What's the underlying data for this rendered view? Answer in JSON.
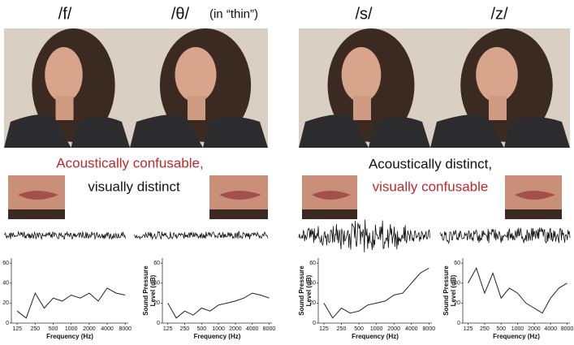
{
  "columns": [
    {
      "label": "/f/"
    },
    {
      "label": "/θ/",
      "note": "(in “thin”)"
    },
    {
      "label": "/s/"
    },
    {
      "label": "/z/"
    }
  ],
  "captions": {
    "left": {
      "line1": "Acoustically confusable,",
      "line2": "visually distinct"
    },
    "right": {
      "line1": "Acoustically distinct,",
      "line2": "visually confusable"
    }
  },
  "spectra": {
    "type": "line",
    "x": [
      125,
      177,
      250,
      354,
      500,
      707,
      1000,
      1414,
      2000,
      2828,
      4000,
      5657,
      8000
    ],
    "xlim": [
      100,
      9000
    ],
    "ylim": [
      0,
      65
    ],
    "xticks": [
      125,
      250,
      500,
      1000,
      2000,
      4000,
      8000
    ],
    "yticks": [
      0,
      20,
      40,
      60
    ],
    "xlabel": "Frequency (Hz)",
    "ylabel": [
      "Sound Pressure",
      "Level (dB)"
    ],
    "color": "#222222",
    "panels": [
      {
        "ylabel_shown": false,
        "values": [
          12,
          5,
          30,
          15,
          25,
          22,
          28,
          25,
          30,
          22,
          35,
          30,
          28
        ]
      },
      {
        "ylabel_shown": true,
        "values": [
          20,
          5,
          12,
          8,
          15,
          12,
          18,
          20,
          22,
          25,
          30,
          28,
          25
        ]
      },
      {
        "ylabel_shown": true,
        "values": [
          20,
          5,
          15,
          10,
          12,
          18,
          20,
          22,
          28,
          30,
          40,
          50,
          55
        ]
      },
      {
        "ylabel_shown": true,
        "values": [
          40,
          55,
          30,
          50,
          25,
          35,
          30,
          20,
          15,
          10,
          25,
          35,
          40
        ]
      }
    ]
  }
}
